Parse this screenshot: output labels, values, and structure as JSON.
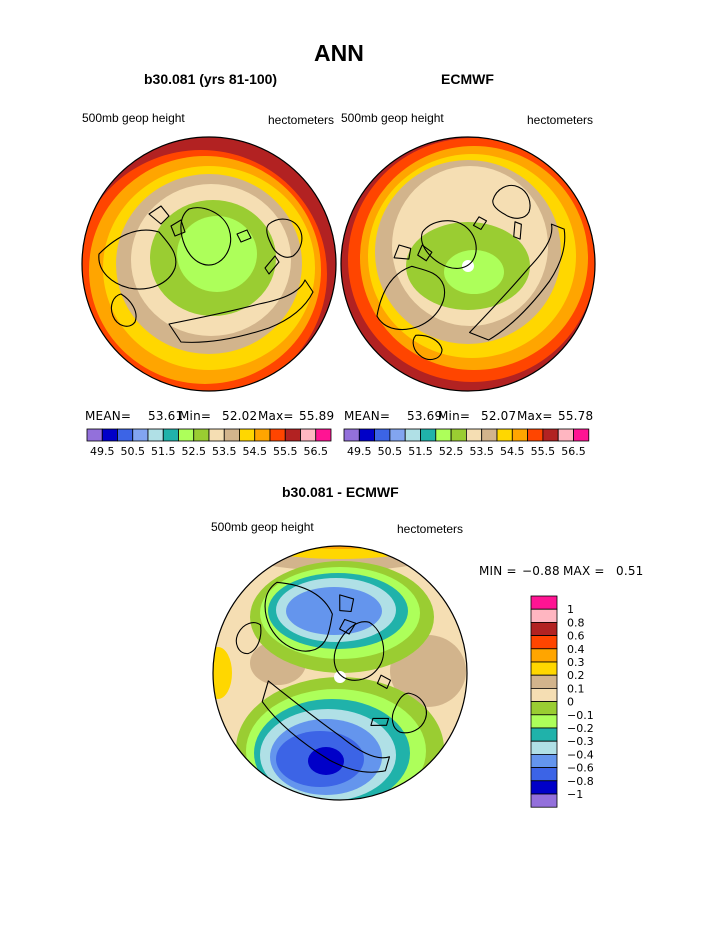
{
  "page": {
    "title": "ANN"
  },
  "panels": {
    "model": {
      "title": "b30.081 (yrs 81-100)",
      "left_label": "500mb geop height",
      "right_label": "hectometers",
      "stats": {
        "mean_label": "MEAN=",
        "mean_value": "53.61",
        "min_label": "Min=",
        "min_value": "52.02",
        "max_label": "Max=",
        "max_value": "55.89"
      }
    },
    "obs": {
      "title": "ECMWF",
      "left_label": "500mb geop height",
      "right_label": "hectometers",
      "stats": {
        "mean_label": "MEAN=",
        "mean_value": "53.69",
        "min_label": "Min=",
        "min_value": "52.07",
        "max_label": "Max=",
        "max_value": "55.78"
      }
    },
    "diff": {
      "title": "b30.081 - ECMWF",
      "left_label": "500mb geop height",
      "right_label": "hectometers",
      "stats": {
        "min_label": "MIN =",
        "min_value": "−0.88",
        "max_label": "MAX =",
        "max_value": "0.51"
      }
    }
  },
  "colors": {
    "abs_scale": [
      "#9370db",
      "#0000c8",
      "#3c64e6",
      "#82a5f0",
      "#b0e0e6",
      "#20b2aa",
      "#adff5a",
      "#9acd32",
      "#f5deb3",
      "#d2b48c",
      "#ffd700",
      "#ffa500",
      "#ff4500",
      "#b22222",
      "#ffb6c1",
      "#ff1493"
    ],
    "diff_scale": [
      "#9370db",
      "#0000c8",
      "#3c64e6",
      "#6495ed",
      "#b0e0e6",
      "#20b2aa",
      "#adff5a",
      "#9acd32",
      "#f5deb3",
      "#d2b48c",
      "#ffd700",
      "#ffa500",
      "#ff4500",
      "#b22222",
      "#ffb6c1",
      "#ff1493"
    ]
  },
  "chart_data": [
    {
      "type": "heatmap",
      "projection": "polar-stereographic (north pole)",
      "title": "b30.081 (yrs 81-100)",
      "variable": "500mb geop height",
      "units": "hectometers",
      "mean": 53.61,
      "min": 52.02,
      "max": 55.89,
      "contour_levels": [
        49.5,
        50.0,
        50.5,
        51.0,
        51.5,
        52.0,
        52.5,
        53.0,
        53.5,
        54.0,
        54.5,
        55.0,
        55.5,
        56.0,
        56.5
      ],
      "colorbar_ticks": [
        "49.5",
        "50.5",
        "51.5",
        "52.5",
        "53.5",
        "54.5",
        "55.5",
        "56.5"
      ]
    },
    {
      "type": "heatmap",
      "projection": "polar-stereographic (north pole)",
      "title": "ECMWF",
      "variable": "500mb geop height",
      "units": "hectometers",
      "mean": 53.69,
      "min": 52.07,
      "max": 55.78,
      "contour_levels": [
        49.5,
        50.0,
        50.5,
        51.0,
        51.5,
        52.0,
        52.5,
        53.0,
        53.5,
        54.0,
        54.5,
        55.0,
        55.5,
        56.0,
        56.5
      ],
      "colorbar_ticks": [
        "49.5",
        "50.5",
        "51.5",
        "52.5",
        "53.5",
        "54.5",
        "55.5",
        "56.5"
      ]
    },
    {
      "type": "heatmap",
      "projection": "polar-stereographic (north pole)",
      "title": "b30.081 - ECMWF",
      "variable": "500mb geop height",
      "units": "hectometers",
      "min": -0.88,
      "max": 0.51,
      "colorbar_ticks": [
        "1",
        "0.8",
        "0.6",
        "0.4",
        "0.3",
        "0.2",
        "0.1",
        "0",
        "−0.1",
        "−0.2",
        "−0.3",
        "−0.4",
        "−0.6",
        "−0.8",
        "−1"
      ]
    }
  ]
}
